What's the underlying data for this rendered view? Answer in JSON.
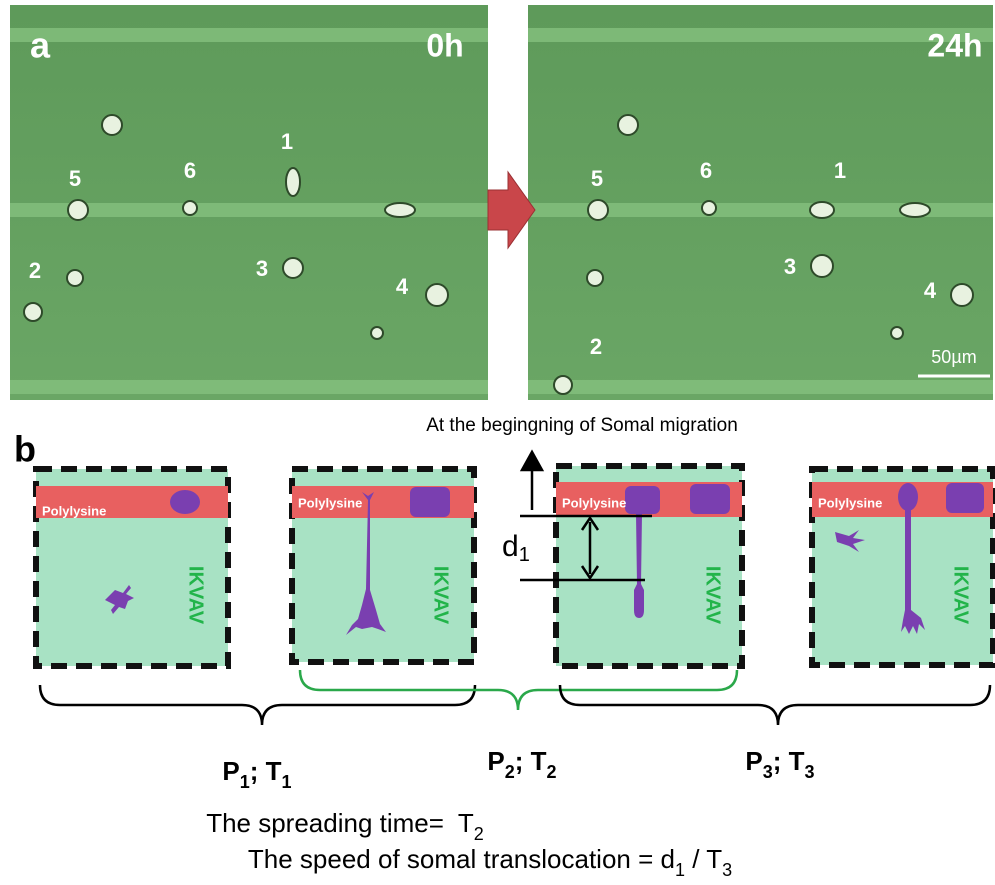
{
  "panel_a": {
    "label": "a",
    "left": {
      "time": "0h",
      "cells": [
        "1",
        "5",
        "6",
        "2",
        "3",
        "4"
      ]
    },
    "right": {
      "time": "24h",
      "cells": [
        "1",
        "5",
        "6",
        "2",
        "3",
        "4"
      ]
    },
    "scale": "50µm"
  },
  "panel_b": {
    "label": "b",
    "caption": "At the begingning of Somal migration",
    "stages": [
      {
        "coating": "Polylysine",
        "substrate": "IKVAV"
      },
      {
        "coating": "Polylysine",
        "substrate": "IKVAV"
      },
      {
        "coating": "Polylysine",
        "substrate": "IKVAV"
      },
      {
        "coating": "Polylysine",
        "substrate": "IKVAV"
      }
    ],
    "distance": [
      "d",
      "1"
    ],
    "phases": [
      [
        "P",
        "1",
        "; T",
        "1"
      ],
      [
        "P",
        "2",
        "; T",
        "2"
      ],
      [
        "P",
        "3",
        "; T",
        "3"
      ]
    ],
    "equations": [
      [
        "The spreading time=  T",
        "2"
      ],
      [
        "The speed of somal translocation = d",
        "1",
        " / T",
        "3"
      ]
    ]
  }
}
